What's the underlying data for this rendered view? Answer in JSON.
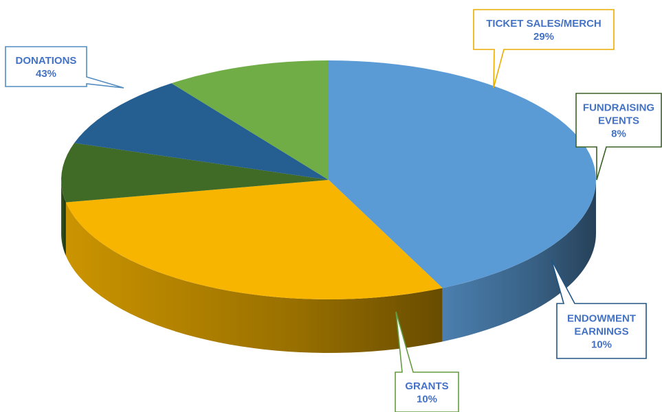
{
  "chart_data": {
    "type": "pie",
    "style": "3d-exploded-callouts",
    "slices": [
      {
        "label": "DONATIONS",
        "value": 43,
        "value_label": "43%",
        "color": "#5b9bd5"
      },
      {
        "label": "TICKET SALES/MERCH",
        "value": 29,
        "value_label": "29%",
        "color": "#f7b500"
      },
      {
        "label": "FUNDRAISING EVENTS",
        "value": 8,
        "value_label": "8%",
        "color": "#3f6b27"
      },
      {
        "label": "ENDOWMENT EARNINGS",
        "value": 10,
        "value_label": "10%",
        "color": "#255e91"
      },
      {
        "label": "GRANTS",
        "value": 10,
        "value_label": "10%",
        "color": "#70ad47"
      }
    ],
    "legend": "none",
    "callout_text_color": "#4472c4"
  }
}
